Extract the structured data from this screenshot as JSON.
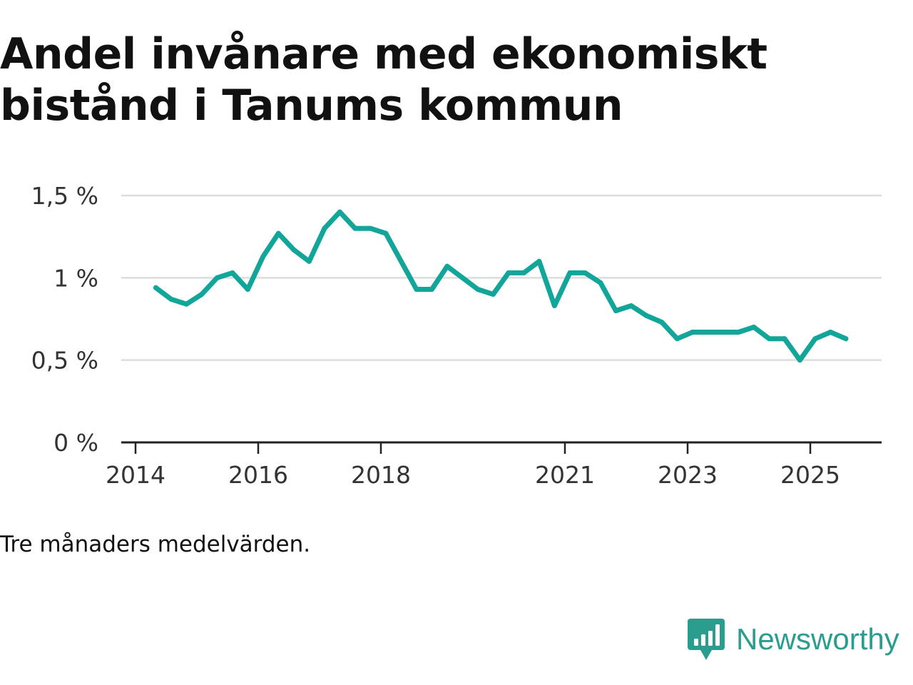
{
  "title": "Andel invånare med ekonomiskt bistånd i Tanums kommun",
  "note": "Tre månaders medelvärden.",
  "brand": {
    "name": "Newsworthy",
    "icon": "newsworthy-logo-icon"
  },
  "colors": {
    "line": "#12a59a",
    "grid": "#dddddd",
    "axis": "#222222",
    "brand": "#2a9d8f"
  },
  "chart_data": {
    "type": "line",
    "title": "Andel invånare med ekonomiskt bistånd i Tanums kommun",
    "xlabel": "",
    "ylabel": "",
    "ylim": [
      0,
      1.5
    ],
    "xlim": [
      2014,
      2026.25
    ],
    "grid": true,
    "x_ticks": [
      {
        "value": 2014,
        "label": "2014"
      },
      {
        "value": 2016,
        "label": "2016"
      },
      {
        "value": 2018,
        "label": "2018"
      },
      {
        "value": 2021,
        "label": "2021"
      },
      {
        "value": 2023,
        "label": "2023"
      },
      {
        "value": 2025,
        "label": "2025"
      }
    ],
    "y_ticks": [
      {
        "value": 0,
        "label": "0 %"
      },
      {
        "value": 0.5,
        "label": "0,5 %"
      },
      {
        "value": 1,
        "label": "1 %"
      },
      {
        "value": 1.5,
        "label": "1,5 %"
      }
    ],
    "series": [
      {
        "name": "Andel invånare med ekonomiskt bistånd",
        "x": [
          2014.33,
          2014.58,
          2014.83,
          2015.08,
          2015.33,
          2015.58,
          2015.83,
          2016.08,
          2016.33,
          2016.58,
          2016.83,
          2017.08,
          2017.33,
          2017.58,
          2017.83,
          2018.08,
          2018.33,
          2018.58,
          2018.83,
          2019.08,
          2019.33,
          2019.58,
          2019.83,
          2020.08,
          2020.33,
          2020.58,
          2020.83,
          2021.08,
          2021.33,
          2021.58,
          2021.83,
          2022.08,
          2022.33,
          2022.58,
          2022.83,
          2023.08,
          2023.33,
          2023.58,
          2023.83,
          2024.08,
          2024.33,
          2024.58,
          2024.83,
          2025.08,
          2025.33,
          2025.58
        ],
        "values": [
          0.94,
          0.87,
          0.84,
          0.9,
          1.0,
          1.03,
          0.93,
          1.13,
          1.27,
          1.17,
          1.1,
          1.3,
          1.4,
          1.3,
          1.3,
          1.27,
          1.1,
          0.93,
          0.93,
          1.07,
          1.0,
          0.93,
          0.9,
          1.03,
          1.03,
          1.1,
          0.83,
          1.03,
          1.03,
          0.97,
          0.8,
          0.83,
          0.77,
          0.73,
          0.63,
          0.67,
          0.67,
          0.67,
          0.67,
          0.7,
          0.63,
          0.63,
          0.5,
          0.63,
          0.67,
          0.63
        ]
      }
    ]
  }
}
